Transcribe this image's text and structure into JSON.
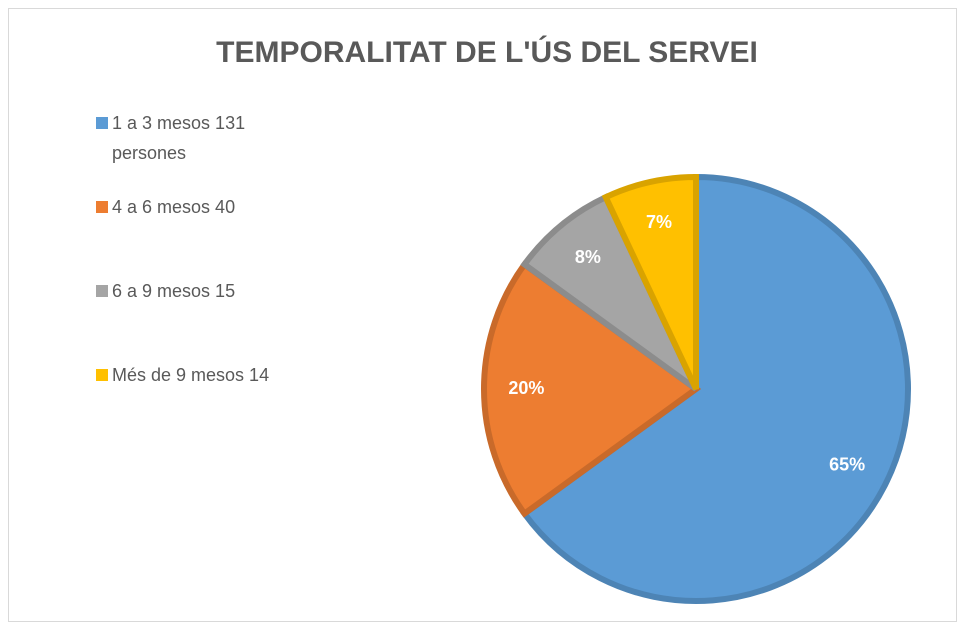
{
  "chart_data": {
    "type": "pie",
    "title": "TEMPORALITAT DE L'ÚS DEL SERVEI",
    "categories": [
      "1 a 3 mesos 131 persones",
      "4 a 6 mesos 40",
      "6 a 9 mesos 15",
      "Més de 9 mesos 14"
    ],
    "values": [
      65,
      20,
      8,
      7
    ],
    "value_labels": [
      "65%",
      "20%",
      "8%",
      "7%"
    ],
    "colors": [
      "#5b9bd5",
      "#ed7d31",
      "#a5a5a5",
      "#ffc000"
    ],
    "legend": "left"
  }
}
